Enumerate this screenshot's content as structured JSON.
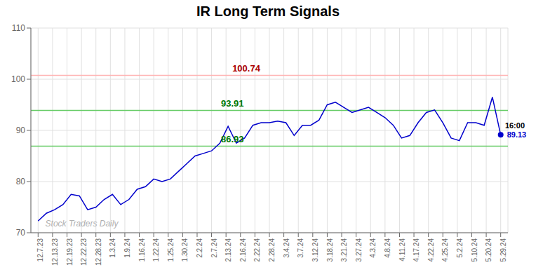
{
  "chart_data": {
    "type": "line",
    "title": "IR Long Term Signals",
    "color": "#0000cc",
    "grid": true,
    "x": [
      0,
      0.571429,
      1.142857,
      1.714286,
      2.285714,
      2.857143,
      3.428571,
      4,
      4.571429,
      5.142857,
      5.714286,
      6.285714,
      6.857143,
      7.428571,
      8,
      8.571429,
      9.142857,
      9.714286,
      10.285714,
      10.857143,
      11.428571,
      12,
      12.571429,
      13.142857,
      13.714286,
      14.285714,
      14.857143,
      15.428571,
      16,
      16.571429,
      17.142857,
      17.714286,
      18.285714,
      18.857143,
      19.428571,
      20,
      20.571429,
      21.142857,
      21.714286,
      22.285714,
      22.857143,
      23.428571,
      24,
      24.571429,
      25.142857,
      25.714286,
      26.285714,
      26.857143,
      27.428571,
      28,
      28.571429,
      29.142857,
      29.714286,
      30.285714,
      30.857143,
      31.428571,
      32
    ],
    "values": [
      72.3,
      73.8,
      74.5,
      75.5,
      77.5,
      77.2,
      74.5,
      75.0,
      76.5,
      77.5,
      75.5,
      76.5,
      78.5,
      79.0,
      80.5,
      80.0,
      80.5,
      82.0,
      83.5,
      85.0,
      85.5,
      86.0,
      87.5,
      90.8,
      87.5,
      88.5,
      91.0,
      91.5,
      91.5,
      91.8,
      91.5,
      89.0,
      91.0,
      91.0,
      92.0,
      95.0,
      95.5,
      94.5,
      93.5,
      94.0,
      94.5,
      93.5,
      92.5,
      91.0,
      88.5,
      89.0,
      91.5,
      93.5,
      94.0,
      91.5,
      88.5,
      88.0,
      91.5,
      91.5,
      91.0,
      96.5,
      89.13
    ],
    "xlim": [
      -0.5,
      32.5
    ],
    "xticks": [
      {
        "value": 0,
        "label": "12.7.23"
      },
      {
        "value": 1,
        "label": "12.13.23"
      },
      {
        "value": 2,
        "label": "12.19.23"
      },
      {
        "value": 3,
        "label": "12.22.23"
      },
      {
        "value": 4,
        "label": "12.28.23"
      },
      {
        "value": 5,
        "label": "1.3.24"
      },
      {
        "value": 6,
        "label": "1.9.24"
      },
      {
        "value": 7,
        "label": "1.16.24"
      },
      {
        "value": 8,
        "label": "1.22.24"
      },
      {
        "value": 9,
        "label": "1.25.24"
      },
      {
        "value": 10,
        "label": "1.30.24"
      },
      {
        "value": 11,
        "label": "2.2.24"
      },
      {
        "value": 12,
        "label": "2.7.24"
      },
      {
        "value": 13,
        "label": "2.13.24"
      },
      {
        "value": 14,
        "label": "2.16.24"
      },
      {
        "value": 15,
        "label": "2.22.24"
      },
      {
        "value": 16,
        "label": "2.28.24"
      },
      {
        "value": 17,
        "label": "3.4.24"
      },
      {
        "value": 18,
        "label": "3.7.24"
      },
      {
        "value": 19,
        "label": "3.12.24"
      },
      {
        "value": 20,
        "label": "3.18.24"
      },
      {
        "value": 21,
        "label": "3.21.24"
      },
      {
        "value": 22,
        "label": "3.27.24"
      },
      {
        "value": 23,
        "label": "4.3.24"
      },
      {
        "value": 24,
        "label": "4.8.24"
      },
      {
        "value": 25,
        "label": "4.11.24"
      },
      {
        "value": 26,
        "label": "4.17.24"
      },
      {
        "value": 27,
        "label": "4.22.24"
      },
      {
        "value": 28,
        "label": "4.25.24"
      },
      {
        "value": 29,
        "label": "5.2.24"
      },
      {
        "value": 30,
        "label": "5.10.24"
      },
      {
        "value": 31,
        "label": "5.20.24"
      },
      {
        "value": 32,
        "label": "5.29.24"
      }
    ],
    "ylim": [
      70,
      110
    ],
    "yticks": [
      70,
      80,
      90,
      100,
      110
    ],
    "reference_lines": [
      {
        "y": 100.74,
        "color": "#ffb3b3"
      },
      {
        "y": 93.91,
        "color": "#66cc66"
      },
      {
        "y": 86.93,
        "color": "#66cc66"
      }
    ],
    "annotations": [
      {
        "text": "100.74",
        "x": 14.4,
        "y": 101.24,
        "color": "#aa0000",
        "align": "center"
      },
      {
        "text": "93.91",
        "x": 13.44,
        "y": 94.41,
        "color": "#007700",
        "align": "center"
      },
      {
        "text": "86.93",
        "x": 13.44,
        "y": 87.43,
        "color": "#007700",
        "align": "center"
      },
      {
        "text": "16:00",
        "x": 32.3,
        "y": 90.13,
        "color": "#000000",
        "align": "left"
      },
      {
        "text": "89.13",
        "x": 32,
        "y": 89.13,
        "color": "#0000cc",
        "align": "left",
        "marker": "circle"
      }
    ],
    "watermark": {
      "text": "Stock Traders Daily",
      "x": 0.5,
      "y": 71.2,
      "color": "#b0b0b0"
    }
  }
}
